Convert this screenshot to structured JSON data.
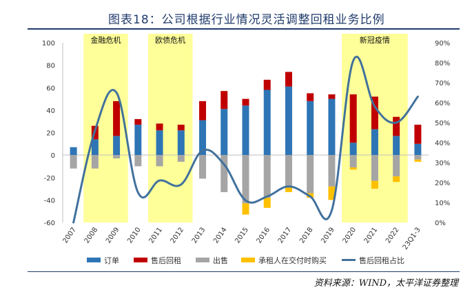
{
  "title": "图表18：公司根据行业情况灵活调整回租业务比例",
  "source": "资料来源：WIND，太平洋证券整理",
  "colors": {
    "order": "#2e75b6",
    "leaseback": "#c00000",
    "sale": "#a5a5a5",
    "intermediate": "#ffc000",
    "ratio": "#41719c",
    "highlight": "#ffff99",
    "title": "#1f3a6b"
  },
  "highlights": [
    {
      "label": "金融危机",
      "from": "2008",
      "to": "2009"
    },
    {
      "label": "欧债危机",
      "from": "2011",
      "to": "2012"
    },
    {
      "label": "新冠疫情",
      "from": "2020",
      "to": "2022"
    }
  ],
  "chart_data": {
    "type": "bar",
    "title": "公司根据行业情况灵活调整回租业务比例",
    "categories": [
      "2007",
      "2008",
      "2009",
      "2010",
      "2011",
      "2012",
      "2013",
      "2014",
      "2015",
      "2016",
      "2017",
      "2018",
      "2019",
      "2020",
      "2021",
      "2022",
      "23Q1-3"
    ],
    "series": [
      {
        "name": "订单",
        "type": "bar",
        "axis": "left",
        "stack": "positive",
        "values": [
          7,
          14,
          17,
          27,
          22,
          22,
          31,
          41,
          44,
          58,
          61,
          48,
          50,
          11,
          23,
          17,
          10
        ]
      },
      {
        "name": "售后回租",
        "type": "bar",
        "axis": "left",
        "stack": "positive",
        "values": [
          0,
          12,
          31,
          5,
          6,
          5,
          17,
          16,
          6,
          9,
          13,
          7,
          4,
          43,
          29,
          17,
          17
        ]
      },
      {
        "name": "出售",
        "type": "bar",
        "axis": "left",
        "stack": "negative",
        "values": [
          -12,
          -12,
          -3,
          -10,
          -10,
          -6,
          -21,
          -33,
          -43,
          -38,
          -29,
          -34,
          -28,
          -11,
          -23,
          -19,
          -4
        ]
      },
      {
        "name": "承租人在交付时购买",
        "type": "bar",
        "axis": "left",
        "stack": "negative",
        "values": [
          0,
          0,
          0,
          0,
          0,
          0,
          0,
          0,
          -10,
          -9,
          -4,
          -4,
          -12,
          -2,
          -7,
          -5,
          -2
        ]
      },
      {
        "name": "售后回租占比",
        "type": "line",
        "axis": "right",
        "unit": "%",
        "values": [
          0,
          46,
          65,
          15,
          21,
          19,
          36,
          29,
          11,
          13,
          18,
          13,
          6,
          81,
          58,
          50,
          63
        ]
      }
    ],
    "ylim_left": [
      -60,
      100
    ],
    "yticks_left": [
      -60,
      -40,
      -20,
      0,
      20,
      40,
      60,
      80,
      100
    ],
    "ylim_right": [
      0,
      90
    ],
    "yticks_right": [
      "0%",
      "10%",
      "20%",
      "30%",
      "40%",
      "50%",
      "60%",
      "70%",
      "80%",
      "90%"
    ],
    "xlabel": "",
    "ylabel": "",
    "legend_position": "bottom",
    "grid": false
  }
}
